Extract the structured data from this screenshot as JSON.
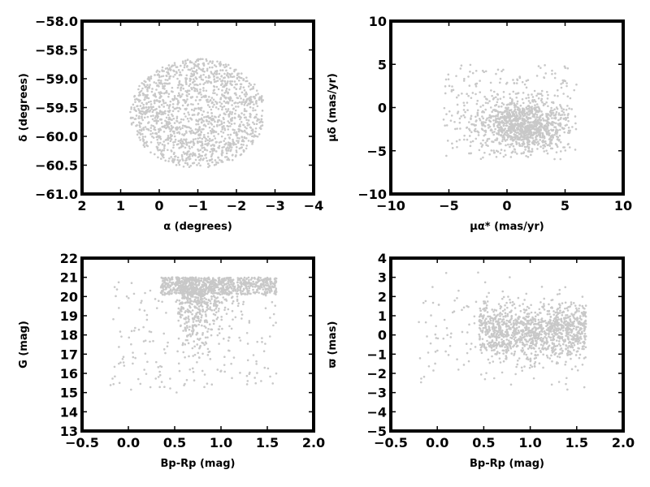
{
  "chart_data": [
    {
      "type": "scatter",
      "panel": "top-left",
      "xlabel": "α (degrees)",
      "ylabel": "δ (degrees)",
      "xlim": [
        2,
        -4
      ],
      "ylim": [
        -61,
        -58
      ],
      "xticks": [
        2,
        1,
        0,
        -1,
        -2,
        -3,
        -4
      ],
      "yticks": [
        -61.0,
        -60.5,
        -60.0,
        -59.5,
        -59.0,
        -58.5,
        -58.0
      ],
      "xtick_labels": [
        "2",
        "1",
        "0",
        "−1",
        "−2",
        "−3",
        "−4"
      ],
      "ytick_labels": [
        "−61.0",
        "−60.5",
        "−60.0",
        "−59.5",
        "−59.0",
        "−58.5",
        "−58.0"
      ],
      "point_color": "#c8c8c8",
      "distribution": {
        "shape": "disk",
        "center": [
          -1.0,
          -59.6
        ],
        "semi_axis_x": 1.75,
        "semi_axis_y": 0.95,
        "n_points": 1500
      }
    },
    {
      "type": "scatter",
      "panel": "top-right",
      "xlabel": "μα* (mas/yr)",
      "ylabel": "μδ (mas/yr)",
      "xlim": [
        -10,
        10
      ],
      "ylim": [
        -10,
        10
      ],
      "xticks": [
        -10,
        -5,
        0,
        5,
        10
      ],
      "yticks": [
        -10,
        -5,
        0,
        5,
        10
      ],
      "xtick_labels": [
        "−10",
        "−5",
        "0",
        "5",
        "10"
      ],
      "ytick_labels": [
        "−10",
        "−5",
        "0",
        "5",
        "10"
      ],
      "point_color": "#c8c8c8",
      "distribution": {
        "shape": "clump",
        "center": [
          1.5,
          -2.0
        ],
        "spread_x": 2.0,
        "spread_y": 1.5,
        "xrange": [
          -5.5,
          6
        ],
        "yrange": [
          -6,
          5
        ],
        "n_points": 1300
      }
    },
    {
      "type": "scatter",
      "panel": "bottom-left",
      "xlabel": "Bp-Rp (mag)",
      "ylabel": "G (mag)",
      "xlim": [
        -0.5,
        2.0
      ],
      "ylim": [
        13,
        22
      ],
      "xticks": [
        -0.5,
        0.0,
        0.5,
        1.0,
        1.5,
        2.0
      ],
      "yticks": [
        13,
        14,
        15,
        16,
        17,
        18,
        19,
        20,
        21,
        22
      ],
      "xtick_labels": [
        "−0.5",
        "0.0",
        "0.5",
        "1.0",
        "1.5",
        "2.0"
      ],
      "ytick_labels": [
        "13",
        "14",
        "15",
        "16",
        "17",
        "18",
        "19",
        "20",
        "21",
        "22"
      ],
      "point_color": "#c8c8c8",
      "distribution": {
        "shape": "cmd",
        "xrange": [
          -0.2,
          1.6
        ],
        "yrange": [
          13.8,
          21.0
        ],
        "n_points": 1400
      }
    },
    {
      "type": "scatter",
      "panel": "bottom-right",
      "xlabel": "Bp-Rp (mag)",
      "ylabel": "ϖ (mas)",
      "xlim": [
        -0.5,
        2.0
      ],
      "ylim": [
        -5,
        4
      ],
      "xticks": [
        -0.5,
        0.0,
        0.5,
        1.0,
        1.5,
        2.0
      ],
      "yticks": [
        -5,
        -4,
        -3,
        -2,
        -1,
        0,
        1,
        2,
        3,
        4
      ],
      "xtick_labels": [
        "−0.5",
        "0.0",
        "0.5",
        "1.0",
        "1.5",
        "2.0"
      ],
      "ytick_labels": [
        "−5",
        "−4",
        "−3",
        "−2",
        "−1",
        "0",
        "1",
        "2",
        "3",
        "4"
      ],
      "point_color": "#c8c8c8",
      "distribution": {
        "shape": "band",
        "xrange": [
          -0.2,
          1.6
        ],
        "center_y": 0.2,
        "spread_y": 0.7,
        "yrange": [
          -3.8,
          3.5
        ],
        "n_points": 1300
      }
    }
  ]
}
